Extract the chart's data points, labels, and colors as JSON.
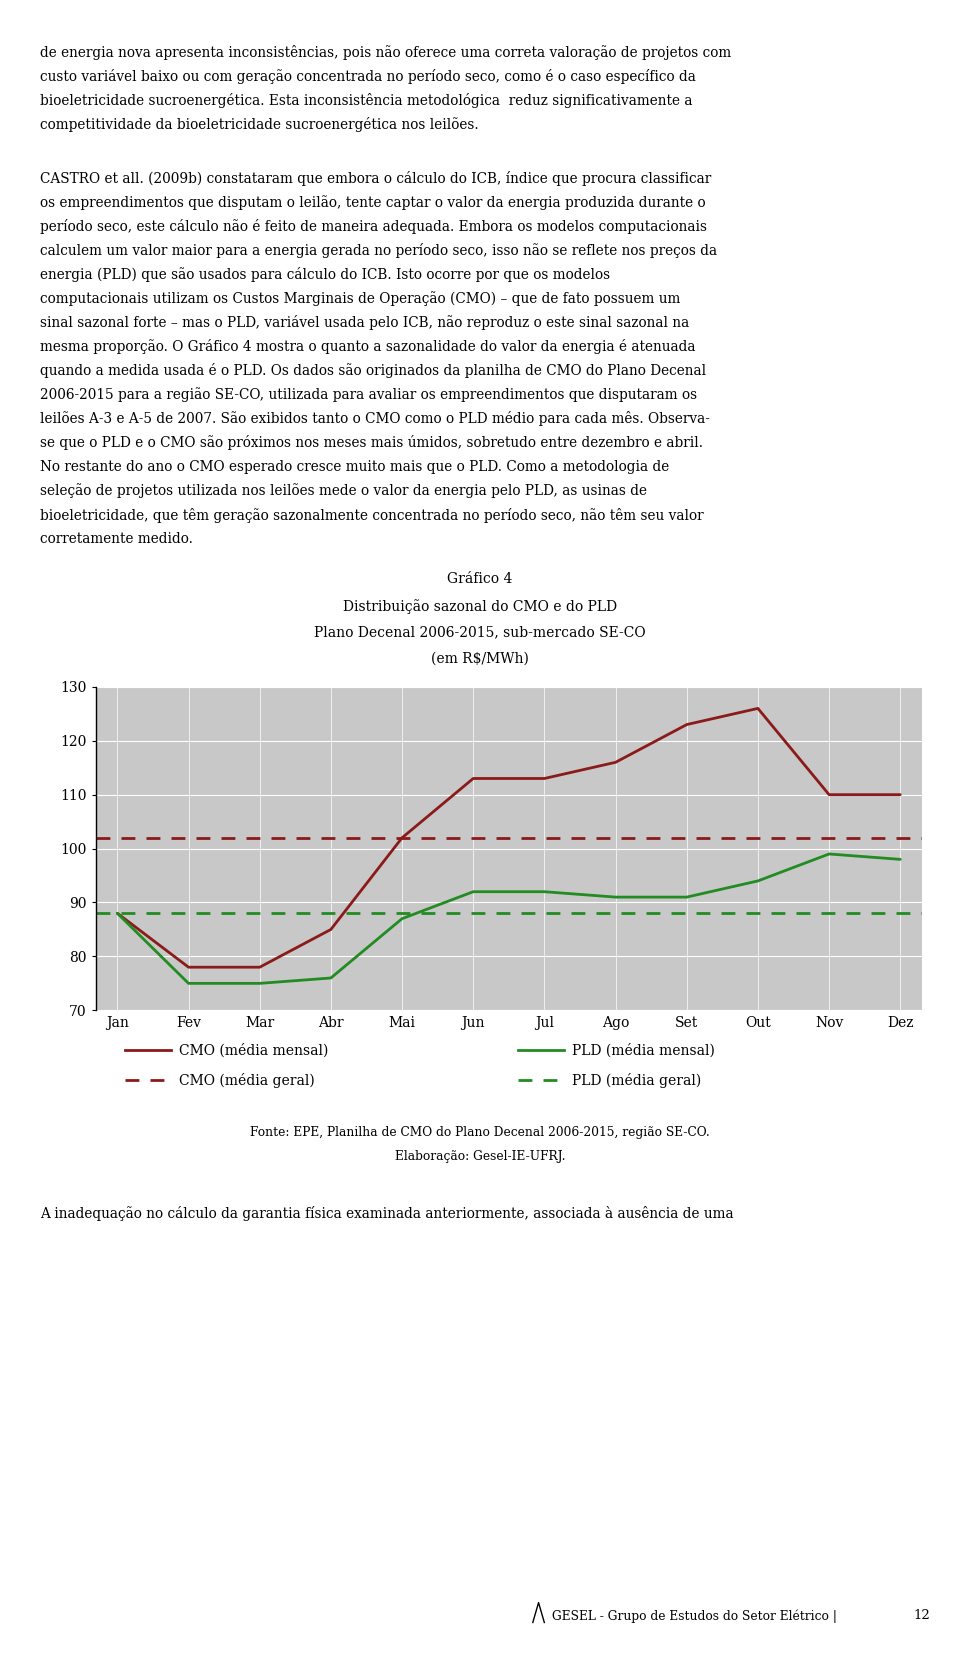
{
  "title_line1": "Gráfico 4",
  "title_line2": "Distribuição sazonal do CMO e do PLD",
  "title_line3": "Plano Decenal 2006-2015, sub-mercado SE-CO",
  "title_line4": "(em R$/MWh)",
  "months": [
    "Jan",
    "Fev",
    "Mar",
    "Abr",
    "Mai",
    "Jun",
    "Jul",
    "Ago",
    "Set",
    "Out",
    "Nov",
    "Dez"
  ],
  "cmo_monthly": [
    88,
    78,
    78,
    85,
    102,
    113,
    113,
    116,
    123,
    126,
    110,
    110
  ],
  "pld_monthly": [
    88,
    75,
    75,
    76,
    87,
    92,
    92,
    91,
    91,
    94,
    99,
    98
  ],
  "cmo_geral": 102,
  "pld_geral": 88,
  "ylim": [
    70,
    130
  ],
  "yticks": [
    70,
    80,
    90,
    100,
    110,
    120,
    130
  ],
  "cmo_color": "#8B1A1A",
  "pld_color": "#228B22",
  "bg_color": "#C8C8C8",
  "fonte_text": "Fonte: EPE, Planilha de CMO do Plano Decenal 2006-2015, região SE-CO.",
  "elaboracao_text": "Elaboração: Gesel-IE-UFRJ.",
  "para1": "de energia nova apresenta inconsistências, pois não oferece uma correta valoração de projetos com custo variável baixo ou com geração concentrada no período seco, como é o caso específico da bioeletricidade sucroenergética. Esta inconsistência metodológica  reduz significativamente a competitividade da bioeletricidade sucroenergética nos leilões.",
  "para2_lines": [
    "CASTRO et all. (2009b) constataram que embora o cálculo do ICB, índice que procura classificar",
    "os empreendimentos que disputam o leilão, tente captar o valor da energia produzida durante o",
    "período seco, este cálculo não é feito de maneira adequada. Embora os modelos computacionais",
    "calculem um valor maior para a energia gerada no período seco, isso não se reflete nos preços da",
    "energia (PLD) que são usados para cálculo do ICB. Isto ocorre por que os modelos",
    "computacionais utilizam os Custos Marginais de Operação (CMO) – que de fato possuem um",
    "sinal sazonal forte – mas o PLD, variável usada pelo ICB, não reproduz o este sinal sazonal na",
    "mesma proporção. O Gráfico 4 mostra o quanto a sazonalidade do valor da energia é atenuada",
    "quando a medida usada é o PLD. Os dados são originados da planilha de CMO do Plano Decenal",
    "2006-2015 para a região SE-CO, utilizada para avaliar os empreendimentos que disputaram os",
    "leilões A-3 e A-5 de 2007. São exibidos tanto o CMO como o PLD médio para cada mês. Observa-",
    "se que o PLD e o CMO são próximos nos meses mais úmidos, sobretudo entre dezembro e abril.",
    "No restante do ano o CMO esperado cresce muito mais que o PLD. Como a metodologia de",
    "seleção de projetos utilizada nos leilões mede o valor da energia pelo PLD, as usinas de",
    "bioeletricidade, que têm geração sazonalmente concentrada no período seco, não têm seu valor",
    "corretamente medido."
  ],
  "para3": "A inadequação no cálculo da garantia física examinada anteriormente, associada à ausência de uma",
  "page_num": "12",
  "gesel_text": "GESEL - Grupo de Estudos do Setor Elétrico |"
}
